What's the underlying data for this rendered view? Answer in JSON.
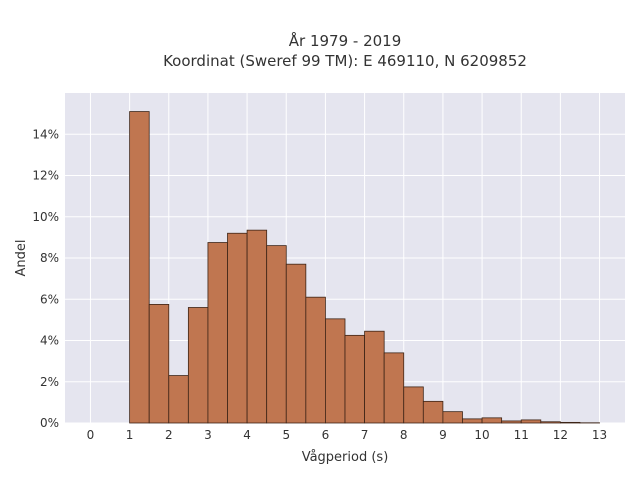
{
  "chart_data": {
    "type": "bar",
    "title": "År 1979 - 2019",
    "subtitle": "Koordinat (Sweref 99 TM): E 469110, N 6209852",
    "xlabel": "Vågperiod (s)",
    "ylabel": "Andel",
    "xlim": [
      -0.65,
      13.65
    ],
    "ylim": [
      0,
      0.16
    ],
    "x_ticks": [
      0,
      1,
      2,
      3,
      4,
      5,
      6,
      7,
      8,
      9,
      10,
      11,
      12,
      13
    ],
    "y_ticks": [
      0,
      0.02,
      0.04,
      0.06,
      0.08,
      0.1,
      0.12,
      0.14
    ],
    "y_tick_labels": [
      "0%",
      "2%",
      "4%",
      "6%",
      "8%",
      "10%",
      "12%",
      "14%"
    ],
    "bin_width": 0.5,
    "bins": [
      {
        "x0": 1.0,
        "value": 0.151
      },
      {
        "x0": 1.5,
        "value": 0.0575
      },
      {
        "x0": 2.0,
        "value": 0.023
      },
      {
        "x0": 2.5,
        "value": 0.056
      },
      {
        "x0": 3.0,
        "value": 0.0875
      },
      {
        "x0": 3.5,
        "value": 0.092
      },
      {
        "x0": 4.0,
        "value": 0.0935
      },
      {
        "x0": 4.5,
        "value": 0.086
      },
      {
        "x0": 5.0,
        "value": 0.077
      },
      {
        "x0": 5.5,
        "value": 0.061
      },
      {
        "x0": 6.0,
        "value": 0.0505
      },
      {
        "x0": 6.5,
        "value": 0.0425
      },
      {
        "x0": 7.0,
        "value": 0.0445
      },
      {
        "x0": 7.5,
        "value": 0.034
      },
      {
        "x0": 8.0,
        "value": 0.0175
      },
      {
        "x0": 8.5,
        "value": 0.0105
      },
      {
        "x0": 9.0,
        "value": 0.0055
      },
      {
        "x0": 9.5,
        "value": 0.002
      },
      {
        "x0": 10.0,
        "value": 0.0025
      },
      {
        "x0": 10.5,
        "value": 0.001
      },
      {
        "x0": 11.0,
        "value": 0.0015
      },
      {
        "x0": 11.5,
        "value": 0.0006
      },
      {
        "x0": 12.0,
        "value": 0.0003
      },
      {
        "x0": 12.5,
        "value": 0.0001
      }
    ],
    "grid": true,
    "colors": {
      "bar_fill": "#c07650",
      "bar_stroke": "#3d2416",
      "plot_bg": "#e5e5ef",
      "grid": "#ffffff"
    }
  }
}
